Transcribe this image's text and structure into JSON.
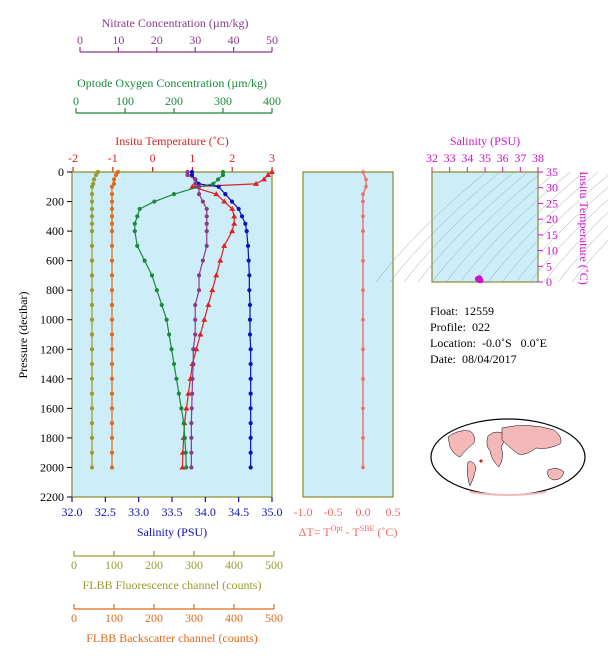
{
  "colors": {
    "nitrate": "#8b3a8b",
    "oxygen": "#1a8a3a",
    "temperature": "#e02020",
    "salinity": "#1010c0",
    "fluorescence": "#9a9a30",
    "backscatter": "#e06a1a",
    "delta_t": "#f06a6a",
    "panel_bg": "#cdeef8",
    "ts_axis": "#d010d0",
    "frame": "#8a8a2a"
  },
  "axes": {
    "nitrate": {
      "label": "Nitrate Concentration (µm/kg)",
      "ticks": [
        "0",
        "10",
        "20",
        "30",
        "40",
        "50"
      ]
    },
    "oxygen": {
      "label": "Optode Oxygen Concentration (µm/kg)",
      "ticks": [
        "0",
        "100",
        "200",
        "300",
        "400"
      ]
    },
    "temperature": {
      "label": "Insitu Temperature (˚C)",
      "ticks": [
        "-2",
        "-1",
        "0",
        "1",
        "2",
        "3"
      ]
    },
    "salinity": {
      "label": "Salinity (PSU)",
      "ticks": [
        "32.0",
        "32.5",
        "33.0",
        "33.5",
        "34.0",
        "34.5",
        "35.0"
      ]
    },
    "pressure": {
      "label": "Pressure (decibar)",
      "ticks": [
        "0",
        "200",
        "400",
        "600",
        "800",
        "1000",
        "1200",
        "1400",
        "1600",
        "1800",
        "2000",
        "2200"
      ]
    },
    "fluorescence": {
      "label": "FLBB Fluorescence channel (counts)",
      "ticks": [
        "0",
        "100",
        "200",
        "300",
        "400",
        "500"
      ]
    },
    "backscatter": {
      "label": "FLBB Backscatter channel (counts)",
      "ticks": [
        "0",
        "100",
        "200",
        "300",
        "400",
        "500"
      ]
    },
    "delta_t": {
      "label_pre": "ΔT= T",
      "label_sup1": "Opt",
      "label_mid": " - T",
      "label_sup2": "SBE",
      "label_post": " (˚C)",
      "ticks": [
        "-1.0",
        "-0.5",
        "0.0",
        "0.5"
      ]
    },
    "ts_salinity": {
      "label": "Salinity (PSU)",
      "ticks": [
        "32",
        "33",
        "34",
        "35",
        "36",
        "37",
        "38"
      ]
    },
    "ts_temperature": {
      "label": "Insitu Temperature (˚C)",
      "ticks": [
        "0",
        "5",
        "10",
        "15",
        "20",
        "25",
        "30",
        "35"
      ]
    }
  },
  "float_info": {
    "float": "Float:  12559",
    "profile": "Profile:  022",
    "location": "Location:  -0.0˚S   0.0˚E",
    "date": "Date:  08/04/2017"
  },
  "chart_data": [
    {
      "type": "line",
      "name": "profiles",
      "pressure": [
        0,
        20,
        50,
        80,
        100,
        150,
        200,
        250,
        300,
        350,
        400,
        500,
        600,
        700,
        800,
        900,
        1000,
        1100,
        1200,
        1300,
        1400,
        1500,
        1600,
        1700,
        1800,
        1900,
        2000
      ],
      "series": [
        {
          "name": "temperature",
          "values": [
            3.0,
            2.9,
            2.8,
            2.6,
            1.0,
            1.6,
            1.8,
            2.0,
            2.05,
            2.05,
            2.0,
            1.8,
            1.7,
            1.6,
            1.5,
            1.4,
            1.3,
            1.2,
            1.1,
            1.0,
            0.95,
            0.9,
            0.85,
            0.8,
            0.78,
            0.76,
            0.75
          ]
        },
        {
          "name": "salinity",
          "values": [
            33.8,
            33.8,
            33.85,
            33.9,
            34.2,
            34.3,
            34.4,
            34.5,
            34.55,
            34.6,
            34.62,
            34.64,
            34.65,
            34.66,
            34.66,
            34.67,
            34.67,
            34.67,
            34.68,
            34.68,
            34.68,
            34.68,
            34.68,
            34.68,
            34.68,
            34.68,
            34.68
          ]
        },
        {
          "name": "oxygen",
          "values": [
            300,
            300,
            290,
            280,
            250,
            200,
            160,
            130,
            125,
            120,
            120,
            125,
            140,
            155,
            165,
            175,
            185,
            190,
            195,
            200,
            205,
            210,
            215,
            220,
            222,
            224,
            225
          ]
        },
        {
          "name": "nitrate",
          "values": [
            28,
            28,
            30,
            30,
            31,
            31,
            32,
            33,
            33,
            33,
            33,
            33,
            32,
            31,
            31,
            30,
            30,
            30,
            29.5,
            29.5,
            29.3,
            29.2,
            29.1,
            29,
            29,
            29,
            29
          ]
        },
        {
          "name": "fluorescence",
          "values": [
            60,
            55,
            50,
            48,
            45,
            45,
            45,
            45,
            45,
            45,
            45,
            45,
            45,
            45,
            45,
            45,
            45,
            45,
            45,
            45,
            45,
            45,
            45,
            45,
            45,
            45,
            45
          ]
        },
        {
          "name": "backscatter",
          "values": [
            110,
            105,
            100,
            100,
            95,
            95,
            95,
            95,
            95,
            95,
            95,
            95,
            95,
            95,
            95,
            95,
            95,
            95,
            95,
            95,
            95,
            95,
            95,
            95,
            95,
            95,
            95
          ]
        }
      ],
      "ylim": [
        2200,
        0
      ]
    },
    {
      "type": "line",
      "name": "delta_t",
      "pressure": [
        0,
        50,
        100,
        150,
        200,
        300,
        400,
        600,
        800,
        1000,
        1200,
        1400,
        1600,
        1800,
        2000
      ],
      "values": [
        0.0,
        0.05,
        0.05,
        0.0,
        0.0,
        0.0,
        0.0,
        0.0,
        0.0,
        0.0,
        0.0,
        0.0,
        0.0,
        0.0,
        0.0
      ],
      "xlim": [
        -1.0,
        0.5
      ]
    },
    {
      "type": "scatter",
      "name": "ts_diagram",
      "points": [
        [
          34.6,
          1.0
        ],
        [
          34.65,
          0.8
        ],
        [
          34.7,
          0.6
        ],
        [
          34.68,
          1.2
        ],
        [
          34.75,
          0.5
        ]
      ],
      "xlim": [
        32,
        38
      ],
      "ylim": [
        0,
        35
      ]
    }
  ]
}
